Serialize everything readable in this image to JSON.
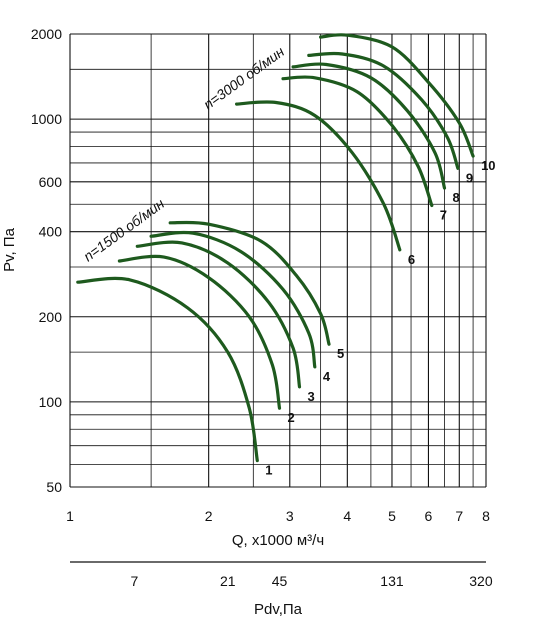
{
  "chart_data": {
    "type": "line",
    "xlabel": "Q, x1000 м³/ч",
    "ylabel": "Pv, Па",
    "xscale": "log",
    "yscale": "log",
    "xlim": [
      1,
      8
    ],
    "ylim": [
      50,
      2000
    ],
    "x_ticks": [
      "1",
      "2",
      "3",
      "4",
      "5",
      "6",
      "7",
      "8"
    ],
    "y_ticks": [
      "50",
      "100",
      "200",
      "400",
      "600",
      "1000",
      "2000"
    ],
    "grid": true,
    "speed_labels": [
      {
        "text": "n=1500 об/мин",
        "near_series": "1-5"
      },
      {
        "text": "n=3000 об/мин",
        "near_series": "6-10"
      }
    ],
    "series": [
      {
        "name": "1",
        "x": [
          1.04,
          1.35,
          1.8,
          2.2,
          2.45,
          2.55
        ],
        "y": [
          265,
          270,
          215,
          150,
          95,
          62
        ]
      },
      {
        "name": "2",
        "x": [
          1.28,
          1.6,
          2.0,
          2.45,
          2.75,
          2.85
        ],
        "y": [
          315,
          325,
          275,
          200,
          135,
          95
        ]
      },
      {
        "name": "3",
        "x": [
          1.4,
          1.75,
          2.2,
          2.7,
          3.05,
          3.15
        ],
        "y": [
          355,
          365,
          310,
          225,
          155,
          113
        ]
      },
      {
        "name": "4",
        "x": [
          1.5,
          1.85,
          2.35,
          2.9,
          3.3,
          3.4
        ],
        "y": [
          385,
          395,
          340,
          250,
          175,
          133
        ]
      },
      {
        "name": "5",
        "x": [
          1.65,
          2.0,
          2.6,
          3.1,
          3.5,
          3.65
        ],
        "y": [
          430,
          425,
          370,
          280,
          205,
          160
        ]
      },
      {
        "name": "6",
        "x": [
          2.3,
          2.8,
          3.4,
          4.1,
          4.8,
          5.2
        ],
        "y": [
          1130,
          1145,
          1030,
          760,
          500,
          345
        ]
      },
      {
        "name": "7",
        "x": [
          2.9,
          3.4,
          4.2,
          5.0,
          5.7,
          6.1
        ],
        "y": [
          1390,
          1400,
          1250,
          950,
          680,
          495
        ]
      },
      {
        "name": "8",
        "x": [
          3.05,
          3.6,
          4.5,
          5.4,
          6.2,
          6.5
        ],
        "y": [
          1530,
          1560,
          1400,
          1070,
          760,
          570
        ]
      },
      {
        "name": "9",
        "x": [
          3.3,
          3.9,
          4.8,
          5.8,
          6.6,
          6.95
        ],
        "y": [
          1680,
          1700,
          1540,
          1170,
          860,
          670
        ]
      },
      {
        "name": "10",
        "x": [
          3.5,
          4.0,
          5.0,
          6.0,
          7.0,
          7.5
        ],
        "y": [
          1950,
          1980,
          1800,
          1350,
          970,
          740
        ]
      }
    ]
  },
  "pdv_axis": {
    "label": "Pdv,Па",
    "ticks": [
      {
        "label": "7",
        "q": 1.38
      },
      {
        "label": "21",
        "q": 2.2
      },
      {
        "label": "45",
        "q": 2.85
      },
      {
        "label": "131",
        "q": 5.0
      },
      {
        "label": "320",
        "q": 7.8
      }
    ]
  },
  "colors": {
    "curve": "#1e5a1e",
    "grid": "#111111"
  }
}
